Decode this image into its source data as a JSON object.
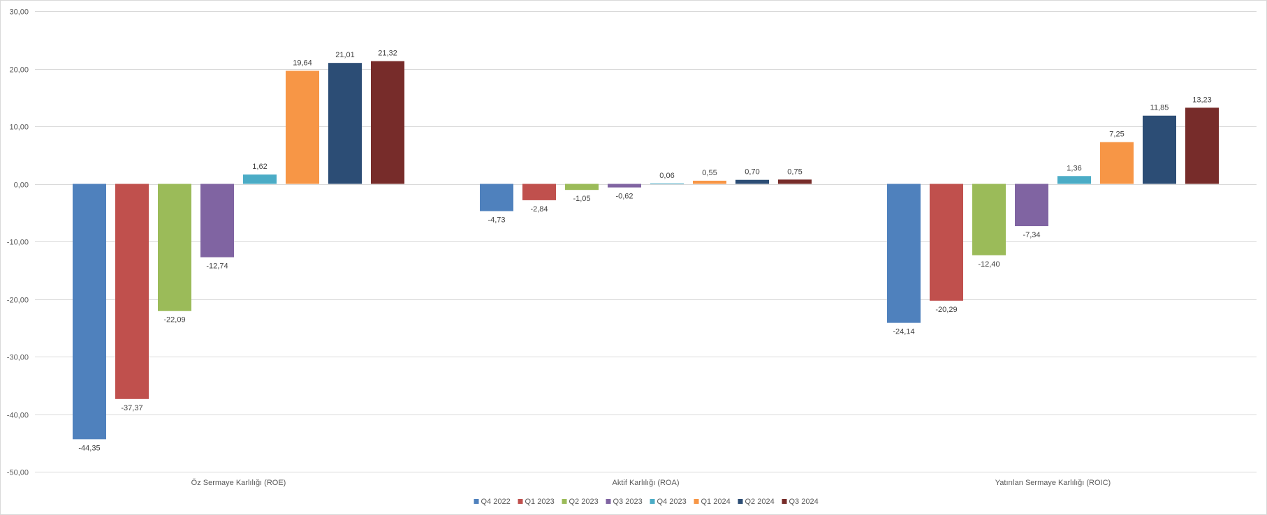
{
  "chart_data": {
    "type": "bar",
    "title": "",
    "xlabel": "",
    "ylabel": "",
    "ylim": [
      -50,
      30
    ],
    "yticks": [
      "30,00",
      "20,00",
      "10,00",
      "0,00",
      "-10,00",
      "-20,00",
      "-30,00",
      "-40,00",
      "-50,00"
    ],
    "ytick_values": [
      30,
      20,
      10,
      0,
      -10,
      -20,
      -30,
      -40,
      -50
    ],
    "grid": true,
    "legend_position": "bottom",
    "categories": [
      "Öz Sermaye Karlılığı (ROE)",
      "Aktif Karlılığı (ROA)",
      "Yatırılan Sermaye Karlılığı (ROIC)"
    ],
    "series": [
      {
        "name": "Q4 2022",
        "color": "#4f81bd",
        "values": [
          -44.35,
          -4.73,
          -24.14
        ],
        "labels": [
          "-44,35",
          "-4,73",
          "-24,14"
        ]
      },
      {
        "name": "Q1 2023",
        "color": "#c0504d",
        "values": [
          -37.37,
          -2.84,
          -20.29
        ],
        "labels": [
          "-37,37",
          "-2,84",
          "-20,29"
        ]
      },
      {
        "name": "Q2 2023",
        "color": "#9bbb59",
        "values": [
          -22.09,
          -1.05,
          -12.4
        ],
        "labels": [
          "-22,09",
          "-1,05",
          "-12,40"
        ]
      },
      {
        "name": "Q3 2023",
        "color": "#8064a2",
        "values": [
          -12.74,
          -0.62,
          -7.34
        ],
        "labels": [
          "-12,74",
          "-0,62",
          "-7,34"
        ]
      },
      {
        "name": "Q4 2023",
        "color": "#4bacc6",
        "values": [
          1.62,
          0.06,
          1.36
        ],
        "labels": [
          "1,62",
          "0,06",
          "1,36"
        ]
      },
      {
        "name": "Q1 2024",
        "color": "#f79646",
        "values": [
          19.64,
          0.55,
          7.25
        ],
        "labels": [
          "19,64",
          "0,55",
          "7,25"
        ]
      },
      {
        "name": "Q2 2024",
        "color": "#2c4d75",
        "values": [
          21.01,
          0.7,
          11.85
        ],
        "labels": [
          "21,01",
          "0,70",
          "11,85"
        ]
      },
      {
        "name": "Q3 2024",
        "color": "#772c2a",
        "values": [
          21.32,
          0.75,
          13.23
        ],
        "labels": [
          "21,32",
          "0,75",
          "13,23"
        ]
      }
    ]
  }
}
